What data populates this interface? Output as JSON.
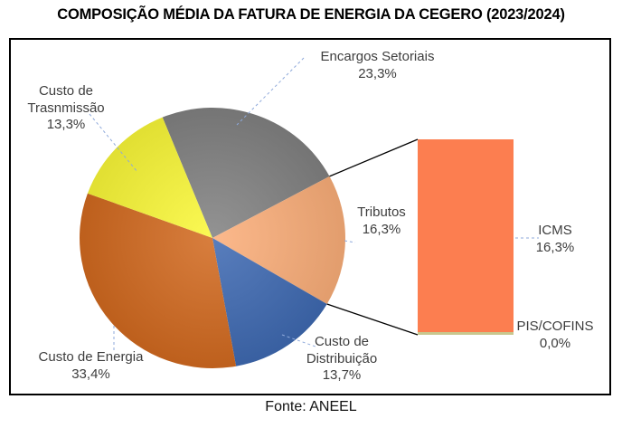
{
  "header": {
    "title": "COMPOSIÇÃO MÉDIA DA FATURA DE ENERGIA DA CEGERO (2023/2024)"
  },
  "footer": {
    "source": "Fonte: ANEEL"
  },
  "chart_data": {
    "type": "pie",
    "variant": "bar-of-pie",
    "title": "COMPOSIÇÃO MÉDIA DA FATURA DE ENERGIA DA CEGERO (2023/2024)",
    "source": "Fonte: ANEEL",
    "unit": "%",
    "legend": "none",
    "start_angle_deg": -22.1,
    "slices": [
      {
        "label": "Encargos Setoriais",
        "value": 23.3,
        "display": "23,3%",
        "color": "#818181"
      },
      {
        "label": "Tributos",
        "value": 16.3,
        "display": "16,3%",
        "color": "#FBAE79"
      },
      {
        "label": "Custo de Distribuição",
        "value": 13.7,
        "display": "13,7%",
        "color": "#3E69B2"
      },
      {
        "label": "Custo de Energia",
        "value": 33.4,
        "display": "33,4%",
        "color": "#D2691F"
      },
      {
        "label": "Custo de Trasnmissão",
        "value": 13.3,
        "display": "13,3%",
        "color": "#FAF838"
      }
    ],
    "bar_breakdown": {
      "parent_label": "Tributos",
      "segments": [
        {
          "label": "ICMS",
          "value": 16.3,
          "display": "16,3%",
          "color": "#FC7E50"
        },
        {
          "label": "PIS/COFINS",
          "value": 0.0,
          "display": "0,0%",
          "color": "#C9C78E"
        }
      ]
    },
    "leader_line_color": "#8EA9DB",
    "connector_line_color": "#000000"
  }
}
